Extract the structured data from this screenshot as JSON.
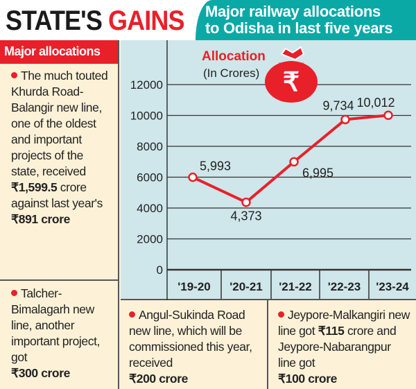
{
  "header": {
    "title_black": "STATE'S",
    "title_red": "GAINS",
    "subtitle_line1": "Major railway allocations",
    "subtitle_line2": "to Odisha in last five years"
  },
  "sidebar": {
    "heading": "Major allocations",
    "item1": {
      "text": "The much touted Khurda Road-Balangir new line, one of the oldest and important projects of the state, received",
      "amount": "₹1,599.5",
      "mid": "crore against last year's",
      "amount2": "₹891 crore"
    },
    "item2": {
      "text": "Talcher-Bimalagarh new line, another important project, got",
      "amount": "₹300 crore"
    }
  },
  "bottom": {
    "item1": {
      "text": "Angul-Sukinda Road new line, which will be commissioned this year, received",
      "amount": "₹200 crore"
    },
    "item2": {
      "text1": "Jeypore-Malkangiri new line got",
      "amount1": "₹115",
      "text2": "crore and Jeypore-Nabarangpur line got",
      "amount2": "₹100 crore"
    }
  },
  "icons": {
    "money_bag": "rupee-money-bag-icon",
    "bullet": "red-dot"
  },
  "colors": {
    "accent": "#e8202a",
    "teal": "#0aa9a6",
    "chart_bg": "#cfe6ea",
    "panel_bg": "#fdf2d8"
  },
  "chart_data": {
    "type": "line",
    "title": "Allocation",
    "subtitle": "(In Crores)",
    "categories": [
      "'19-20",
      "'20-21",
      "'21-22",
      "'22-23",
      "'23-24"
    ],
    "values": [
      5993,
      4373,
      6995,
      9734,
      10012
    ],
    "labels": [
      "5,993",
      "4,373",
      "6,995",
      "9,734",
      "10,012"
    ],
    "yticks": [
      0,
      2000,
      4000,
      6000,
      8000,
      10000,
      12000
    ],
    "ylim": [
      0,
      12000
    ],
    "grid": true,
    "line_color": "#e8202a"
  }
}
